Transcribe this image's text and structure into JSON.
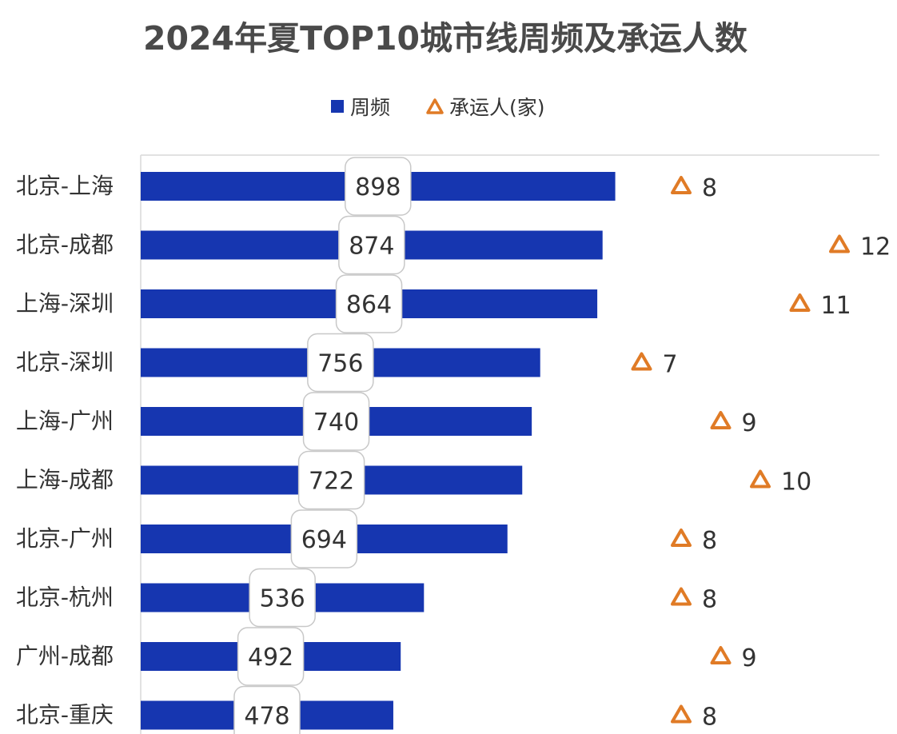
{
  "chart_data": {
    "type": "bar",
    "orientation": "horizontal",
    "title": "2024年夏TOP10城市线周频及承运人数",
    "legend_position": "top",
    "grid": false,
    "categories": [
      "北京-上海",
      "北京-成都",
      "上海-深圳",
      "北京-深圳",
      "上海-广州",
      "上海-成都",
      "北京-广州",
      "北京-杭州",
      "广州-成都",
      "北京-重庆"
    ],
    "series": [
      {
        "name": "周频",
        "type": "bar",
        "color": "#1636B0",
        "values": [
          898,
          874,
          864,
          756,
          740,
          722,
          694,
          536,
          492,
          478
        ]
      },
      {
        "name": "承运人(家)",
        "type": "scatter",
        "marker": "triangle",
        "color": "#E07B26",
        "values": [
          8,
          12,
          11,
          7,
          9,
          10,
          8,
          8,
          9,
          8
        ]
      }
    ],
    "xlim": [
      0,
      1400
    ]
  }
}
